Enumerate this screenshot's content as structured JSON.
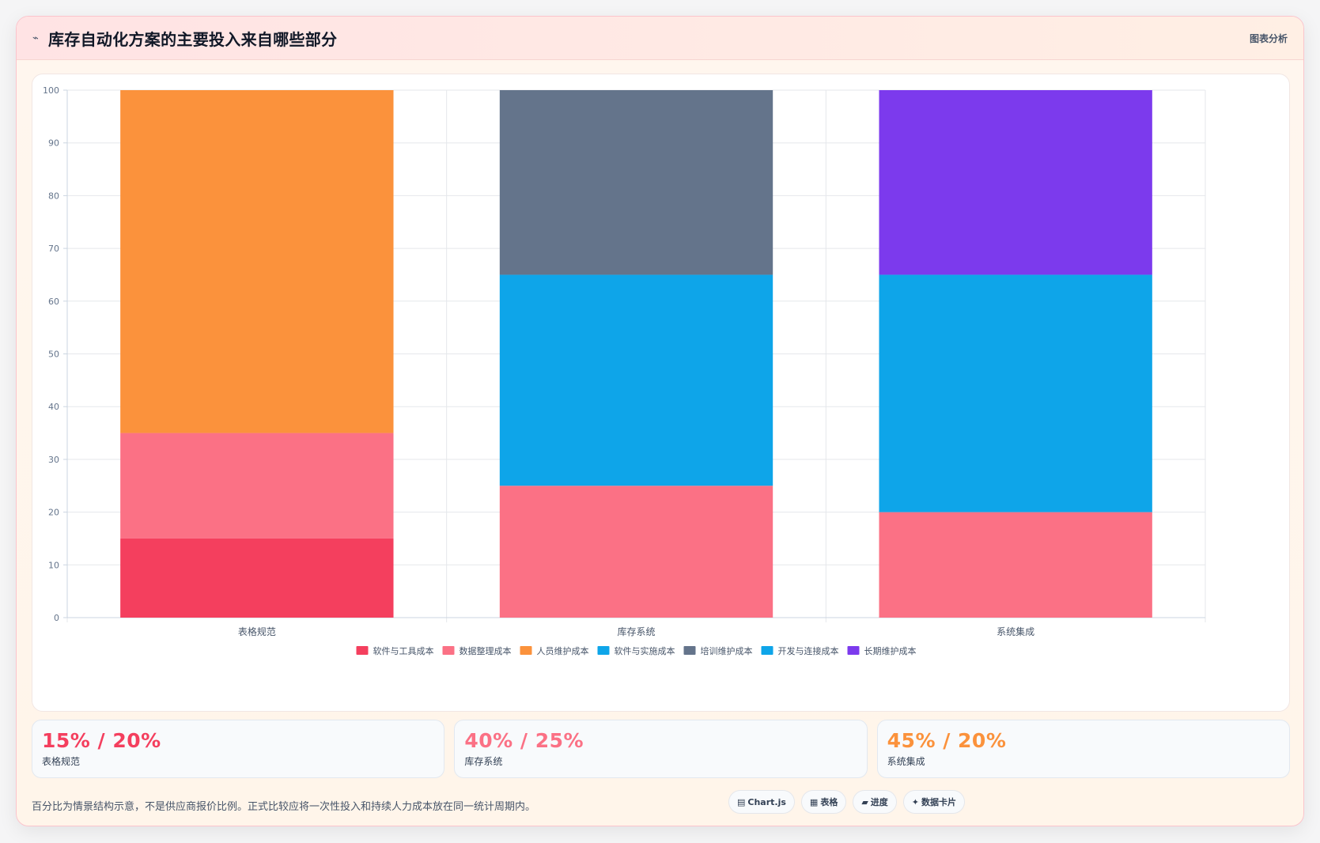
{
  "header": {
    "icon": "trend-icon",
    "title": "库存自动化方案的主要投入来自哪些部分",
    "tag": "图表分析"
  },
  "chart_data": {
    "type": "bar",
    "stacked": true,
    "categories": [
      "表格规范",
      "库存系统",
      "系统集成"
    ],
    "ylim": [
      0,
      100
    ],
    "yticks": [
      0,
      10,
      20,
      30,
      40,
      50,
      60,
      70,
      80,
      90,
      100
    ],
    "grid": true,
    "legend_position": "bottom",
    "series": [
      {
        "name": "软件与工具成本",
        "color": "#f43f5e",
        "values": [
          15,
          0,
          0
        ]
      },
      {
        "name": "数据整理成本",
        "color": "#fb7185",
        "values": [
          20,
          25,
          20
        ]
      },
      {
        "name": "人员维护成本",
        "color": "#fb923c",
        "values": [
          65,
          0,
          0
        ]
      },
      {
        "name": "软件与实施成本",
        "color": "#0ea5e9",
        "values": [
          0,
          40,
          0
        ]
      },
      {
        "name": "培训维护成本",
        "color": "#64748b",
        "values": [
          0,
          35,
          0
        ]
      },
      {
        "name": "开发与连接成本",
        "color": "#0ea5e9",
        "values": [
          0,
          0,
          45
        ]
      },
      {
        "name": "长期维护成本",
        "color": "#7c3aed",
        "values": [
          0,
          0,
          35
        ]
      }
    ]
  },
  "stats": [
    {
      "value": "15% / 20%",
      "label": "表格规范",
      "color": "#f43f5e"
    },
    {
      "value": "40% / 25%",
      "label": "库存系统",
      "color": "#fb7185"
    },
    {
      "value": "45% / 20%",
      "label": "系统集成",
      "color": "#fb923c"
    }
  ],
  "footer": {
    "note": "百分比为情景结构示意，不是供应商报价比例。正式比较应将一次性投入和持续人力成本放在同一统计周期内。",
    "chips": [
      {
        "icon": "chart-icon",
        "glyph": "▤",
        "label": "Chart.js"
      },
      {
        "icon": "table-icon",
        "glyph": "▦",
        "label": "表格"
      },
      {
        "icon": "progress-icon",
        "glyph": "▰",
        "label": "进度"
      },
      {
        "icon": "card-icon",
        "glyph": "✦",
        "label": "数据卡片"
      }
    ]
  }
}
